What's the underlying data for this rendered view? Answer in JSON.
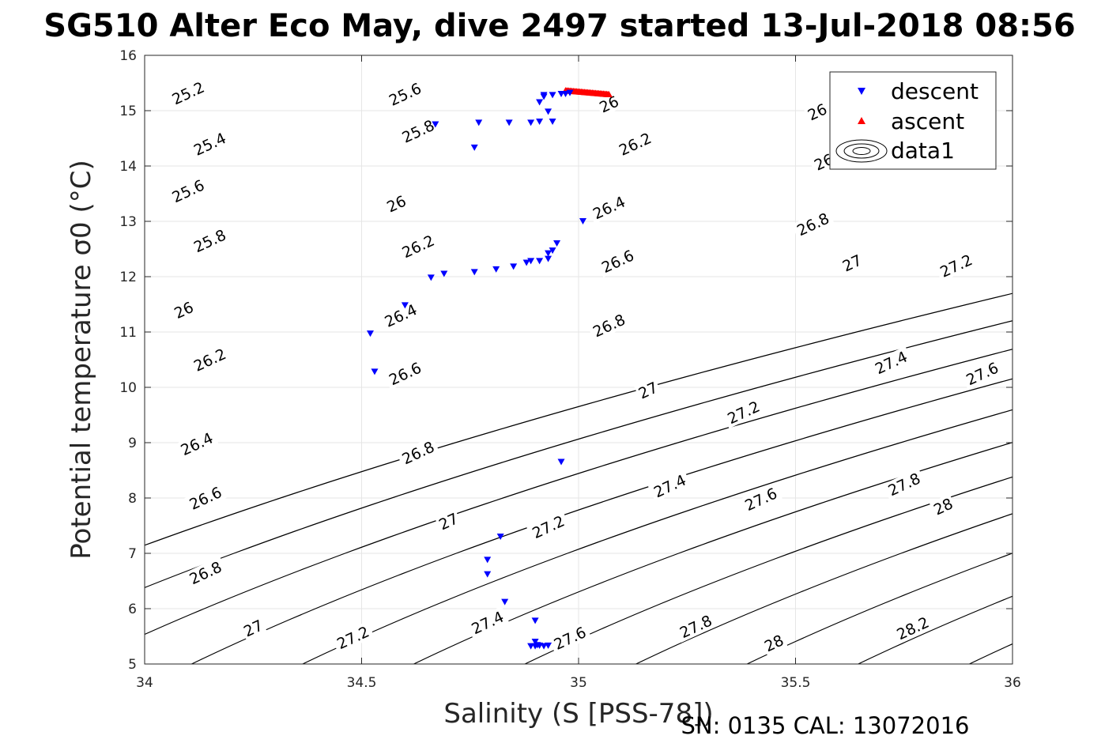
{
  "chart_data": {
    "type": "scatter",
    "title": "SG510 Alter Eco May, dive 2497 started 13-Jul-2018 08:56",
    "xlabel": "Salinity (S [PSS-78])",
    "ylabel": "Potential temperature σ0 (°C)",
    "xlim": [
      34,
      36
    ],
    "ylim": [
      5,
      16
    ],
    "xticks": [
      34,
      34.5,
      35,
      35.5,
      36
    ],
    "xtick_labels": [
      "34",
      "34.5",
      "35",
      "35.5",
      "36"
    ],
    "yticks": [
      5,
      6,
      7,
      8,
      9,
      10,
      11,
      12,
      13,
      14,
      15,
      16
    ],
    "ytick_labels": [
      "5",
      "6",
      "7",
      "8",
      "9",
      "10",
      "11",
      "12",
      "13",
      "14",
      "15",
      "16"
    ],
    "grid": true,
    "legend_location": "top-right",
    "legend": [
      "descent",
      "ascent",
      "data1"
    ],
    "series": [
      {
        "name": "descent",
        "marker": "triangle-down",
        "color": "#0000ff",
        "x": [
          34.67,
          34.77,
          34.84,
          34.89,
          34.91,
          34.94,
          34.93,
          34.76,
          34.91,
          34.92,
          34.92,
          34.94,
          34.96,
          34.97,
          34.98,
          35.01,
          34.95,
          34.94,
          34.93,
          34.93,
          34.91,
          34.89,
          34.88,
          34.85,
          34.81,
          34.76,
          34.69,
          34.66,
          34.6,
          34.52,
          34.53,
          34.96,
          34.82,
          34.79,
          34.79,
          34.83,
          34.9,
          34.9,
          34.89,
          34.9,
          34.91,
          34.92,
          34.93,
          34.905
        ],
        "y": [
          14.75,
          14.78,
          14.78,
          14.78,
          14.8,
          14.8,
          14.98,
          14.33,
          15.15,
          15.25,
          15.28,
          15.28,
          15.3,
          15.3,
          15.32,
          13.0,
          12.6,
          12.47,
          12.42,
          12.32,
          12.28,
          12.28,
          12.25,
          12.18,
          12.13,
          12.08,
          12.05,
          11.98,
          11.48,
          10.97,
          10.28,
          8.65,
          7.3,
          6.88,
          6.62,
          6.12,
          5.78,
          5.4,
          5.32,
          5.32,
          5.33,
          5.32,
          5.33,
          5.34
        ]
      },
      {
        "name": "ascent",
        "marker": "triangle-up",
        "color": "#ff0000",
        "x_range": [
          34.97,
          35.07
        ],
        "y_range": [
          15.37,
          15.3
        ],
        "count": 40
      },
      {
        "name": "data1",
        "type": "contour",
        "color": "#000000",
        "levels": [
          25.2,
          25.4,
          25.6,
          25.8,
          26,
          26.2,
          26.4,
          26.6,
          26.8,
          27,
          27.2,
          27.4,
          27.6,
          27.8,
          28,
          28.2,
          28.4
        ],
        "labels": [
          {
            "text": "25.2",
            "s": 34.1,
            "t": 15.32
          },
          {
            "text": "25.4",
            "s": 34.15,
            "t": 14.4
          },
          {
            "text": "25.6",
            "s": 34.1,
            "t": 13.55
          },
          {
            "text": "25.8",
            "s": 34.15,
            "t": 12.65
          },
          {
            "text": "26",
            "s": 34.09,
            "t": 11.4
          },
          {
            "text": "26.2",
            "s": 34.15,
            "t": 10.5
          },
          {
            "text": "26.4",
            "s": 34.12,
            "t": 8.98
          },
          {
            "text": "26.6",
            "s": 34.14,
            "t": 8.0
          },
          {
            "text": "26.8",
            "s": 34.14,
            "t": 6.65
          },
          {
            "text": "27",
            "s": 34.25,
            "t": 5.65
          },
          {
            "text": "27.2",
            "s": 34.48,
            "t": 5.48
          },
          {
            "text": "25.6",
            "s": 34.6,
            "t": 15.3
          },
          {
            "text": "25.8",
            "s": 34.63,
            "t": 14.63
          },
          {
            "text": "26",
            "s": 34.58,
            "t": 13.32
          },
          {
            "text": "26.2",
            "s": 34.63,
            "t": 12.55
          },
          {
            "text": "26.4",
            "s": 34.59,
            "t": 11.3
          },
          {
            "text": "26.6",
            "s": 34.6,
            "t": 10.25
          },
          {
            "text": "26.8",
            "s": 34.63,
            "t": 8.82
          },
          {
            "text": "27",
            "s": 34.7,
            "t": 7.58
          },
          {
            "text": "27.2",
            "s": 34.93,
            "t": 7.48
          },
          {
            "text": "27.4",
            "s": 34.79,
            "t": 5.75
          },
          {
            "text": "27.6",
            "s": 34.98,
            "t": 5.47
          },
          {
            "text": "26",
            "s": 35.07,
            "t": 15.12
          },
          {
            "text": "26.2",
            "s": 35.13,
            "t": 14.4
          },
          {
            "text": "26.4",
            "s": 35.07,
            "t": 13.25
          },
          {
            "text": "26.6",
            "s": 35.09,
            "t": 12.28
          },
          {
            "text": "26.8",
            "s": 35.07,
            "t": 11.12
          },
          {
            "text": "27",
            "s": 35.16,
            "t": 9.95
          },
          {
            "text": "27.2",
            "s": 35.38,
            "t": 9.55
          },
          {
            "text": "27.4",
            "s": 35.21,
            "t": 8.22
          },
          {
            "text": "27.6",
            "s": 35.42,
            "t": 7.98
          },
          {
            "text": "27.8",
            "s": 35.27,
            "t": 5.68
          },
          {
            "text": "28",
            "s": 35.45,
            "t": 5.38
          },
          {
            "text": "26",
            "s": 35.55,
            "t": 14.98
          },
          {
            "text": "26.2",
            "s": 35.58,
            "t": 14.13
          },
          {
            "text": "26.8",
            "s": 35.54,
            "t": 12.95
          },
          {
            "text": "27",
            "s": 35.63,
            "t": 12.25
          },
          {
            "text": "27.2",
            "s": 35.87,
            "t": 12.2
          },
          {
            "text": "27.4",
            "s": 35.72,
            "t": 10.45
          },
          {
            "text": "27.6",
            "s": 35.93,
            "t": 10.25
          },
          {
            "text": "27.8",
            "s": 35.75,
            "t": 8.25
          },
          {
            "text": "28",
            "s": 35.84,
            "t": 7.85
          },
          {
            "text": "28.2",
            "s": 35.77,
            "t": 5.65
          }
        ]
      }
    ]
  },
  "footer": {
    "serial": "SN: 0135  CAL: 13072016"
  }
}
